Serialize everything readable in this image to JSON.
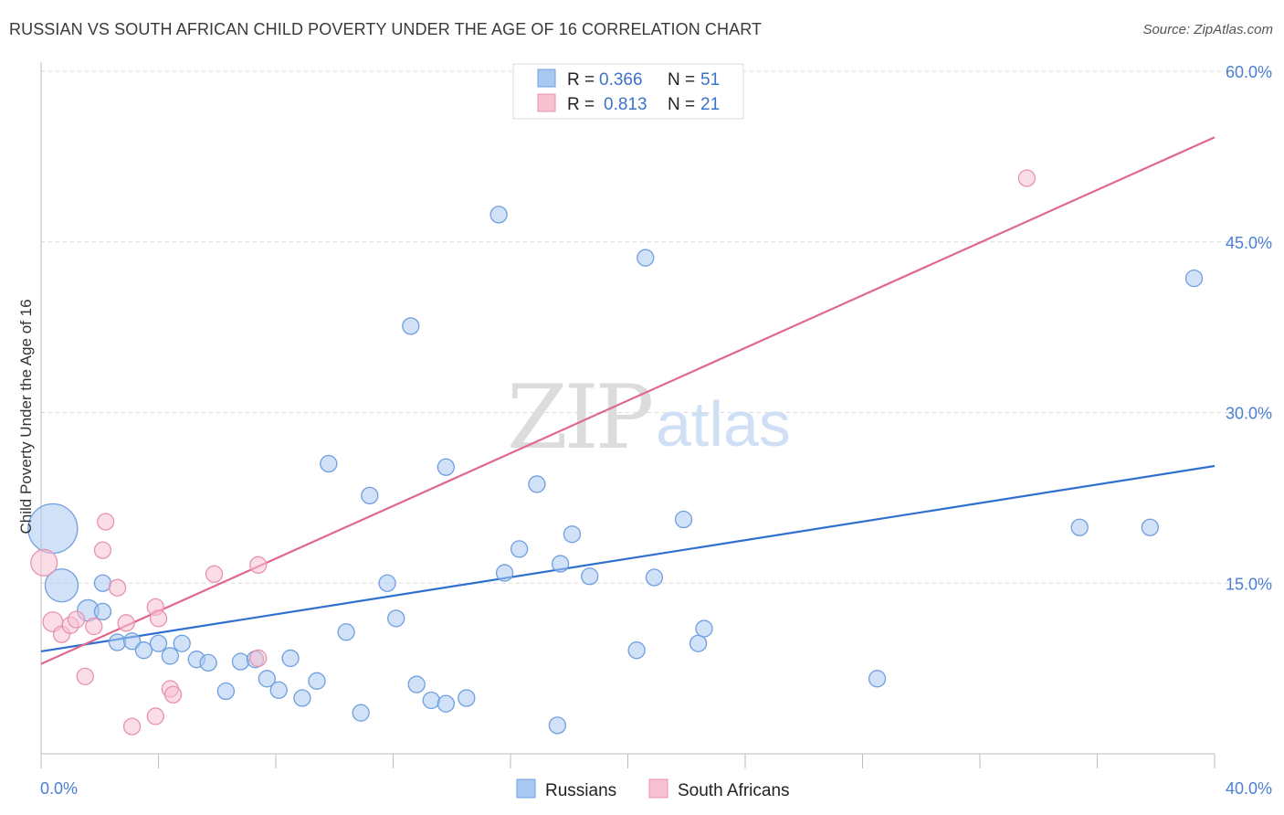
{
  "title": "RUSSIAN VS SOUTH AFRICAN CHILD POVERTY UNDER THE AGE OF 16 CORRELATION CHART",
  "source": "Source: ZipAtlas.com",
  "watermark": {
    "zip": "ZIP",
    "atlas": "atlas"
  },
  "chart_data": {
    "type": "scatter",
    "title": "RUSSIAN VS SOUTH AFRICAN CHILD POVERTY UNDER THE AGE OF 16 CORRELATION CHART",
    "xlabel": "",
    "ylabel": "Child Poverty Under the Age of 16",
    "xlim": [
      0,
      40
    ],
    "ylim": [
      0,
      60
    ],
    "x_tick_labels": [
      "0.0%",
      "40.0%"
    ],
    "y_ticks": [
      15,
      30,
      45,
      60
    ],
    "y_tick_labels": [
      "15.0%",
      "30.0%",
      "45.0%",
      "60.0%"
    ],
    "grid": true,
    "legend_top": [
      {
        "r_label": "R =",
        "r_value": "0.366",
        "n_label": "N =",
        "n_value": "51"
      },
      {
        "r_label": "R =",
        "r_value": "0.813",
        "n_label": "N =",
        "n_value": "21"
      }
    ],
    "series": [
      {
        "name": "Russians",
        "color": "#a9c9f2",
        "stroke": "#6f9fdf",
        "line_color": "#2f6fd0",
        "trend": [
          [
            0,
            9.0
          ],
          [
            40,
            25.3
          ]
        ],
        "points": [
          [
            0.4,
            19.8,
            3
          ],
          [
            0.7,
            14.8,
            2
          ],
          [
            1.6,
            12.6,
            1.3
          ],
          [
            2.1,
            12.5,
            1
          ],
          [
            2.1,
            15.0,
            1
          ],
          [
            2.6,
            9.8,
            1
          ],
          [
            3.1,
            9.9,
            1
          ],
          [
            3.5,
            9.1,
            1
          ],
          [
            4.0,
            9.7,
            1
          ],
          [
            4.4,
            8.6,
            1
          ],
          [
            4.8,
            9.7,
            1
          ],
          [
            5.3,
            8.3,
            1
          ],
          [
            5.7,
            8.0,
            1
          ],
          [
            6.3,
            5.5,
            1
          ],
          [
            6.8,
            8.1,
            1
          ],
          [
            7.3,
            8.3,
            1
          ],
          [
            7.7,
            6.6,
            1
          ],
          [
            8.1,
            5.6,
            1
          ],
          [
            8.5,
            8.4,
            1
          ],
          [
            8.9,
            4.9,
            1
          ],
          [
            9.4,
            6.4,
            1
          ],
          [
            9.8,
            25.5,
            1
          ],
          [
            10.4,
            10.7,
            1
          ],
          [
            10.9,
            3.6,
            1
          ],
          [
            11.2,
            22.7,
            1
          ],
          [
            11.8,
            15.0,
            1
          ],
          [
            12.1,
            11.9,
            1
          ],
          [
            12.6,
            37.6,
            1
          ],
          [
            12.8,
            6.1,
            1
          ],
          [
            13.3,
            4.7,
            1
          ],
          [
            13.8,
            4.4,
            1
          ],
          [
            13.8,
            25.2,
            1
          ],
          [
            14.5,
            4.9,
            1
          ],
          [
            15.6,
            47.4,
            1
          ],
          [
            15.8,
            15.9,
            1
          ],
          [
            16.3,
            18.0,
            1
          ],
          [
            16.9,
            23.7,
            1
          ],
          [
            17.6,
            2.5,
            1
          ],
          [
            17.7,
            16.7,
            1
          ],
          [
            18.1,
            19.3,
            1
          ],
          [
            18.7,
            15.6,
            1
          ],
          [
            20.3,
            9.1,
            1
          ],
          [
            20.6,
            43.6,
            1
          ],
          [
            20.9,
            15.5,
            1
          ],
          [
            21.9,
            20.6,
            1
          ],
          [
            22.4,
            9.7,
            1
          ],
          [
            22.6,
            11.0,
            1
          ],
          [
            28.5,
            6.6,
            1
          ],
          [
            35.4,
            19.9,
            1
          ],
          [
            37.8,
            19.9,
            1
          ],
          [
            39.3,
            41.8,
            1
          ]
        ]
      },
      {
        "name": "South Africans",
        "color": "#f7c1d1",
        "stroke": "#e892ae",
        "line_color": "#e0688f",
        "trend": [
          [
            0,
            7.9
          ],
          [
            40,
            54.2
          ]
        ],
        "points": [
          [
            0.1,
            16.8,
            1.6
          ],
          [
            0.4,
            11.6,
            1.2
          ],
          [
            0.7,
            10.5,
            1
          ],
          [
            1.0,
            11.3,
            1
          ],
          [
            1.2,
            11.8,
            1
          ],
          [
            1.5,
            6.8,
            1
          ],
          [
            1.8,
            11.2,
            1
          ],
          [
            2.1,
            17.9,
            1
          ],
          [
            2.2,
            20.4,
            1
          ],
          [
            2.6,
            14.6,
            1
          ],
          [
            2.9,
            11.5,
            1
          ],
          [
            3.1,
            2.4,
            1
          ],
          [
            3.9,
            12.9,
            1
          ],
          [
            3.9,
            3.3,
            1
          ],
          [
            4.0,
            11.9,
            1
          ],
          [
            4.4,
            5.7,
            1
          ],
          [
            4.5,
            5.2,
            1
          ],
          [
            5.9,
            15.8,
            1
          ],
          [
            7.4,
            8.4,
            1
          ],
          [
            7.4,
            16.6,
            1
          ],
          [
            33.6,
            50.6,
            1
          ]
        ]
      }
    ],
    "legend_bottom": [
      "Russians",
      "South Africans"
    ]
  }
}
